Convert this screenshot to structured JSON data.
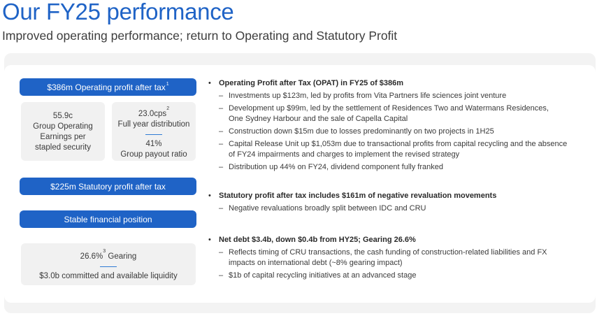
{
  "header": {
    "title": "Our FY25 performance",
    "subtitle": "Improved operating performance; return to Operating and Statutory Profit"
  },
  "left": {
    "pill_opat": {
      "text": "$386m Operating profit after tax",
      "sup": "1"
    },
    "card_eps": {
      "l1": "55.9c",
      "l2": "Group Operating",
      "l3": "Earnings per",
      "l4": "stapled security"
    },
    "card_dist": {
      "value": "23.0cps",
      "sup": "2",
      "label": "Full year distribution",
      "payout_value": "41%",
      "payout_label": "Group payout ratio"
    },
    "pill_statutory": {
      "text": "$225m Statutory profit after tax"
    },
    "pill_financial": {
      "text": "Stable financial position"
    },
    "card_gearing": {
      "value": "26.6%",
      "sup": "3",
      "label": "Gearing",
      "liquidity": "$3.0b committed and available liquidity"
    }
  },
  "bullets": [
    {
      "head": "Operating Profit after Tax (OPAT) in FY25 of $386m",
      "subs": [
        [
          "Investments up $123m, led by profits from Vita Partners life sciences joint venture"
        ],
        [
          "Development up $99m, led by the settlement of Residences Two and Watermans Residences,",
          "One Sydney Harbour and the sale of Capella Capital"
        ],
        [
          "Construction down $15m due to losses predominantly on two projects in 1H25"
        ],
        [
          "Capital Release Unit up $1,053m due to transactional profits from capital recycling and the absence",
          "of FY24 impairments and charges to implement the revised strategy"
        ],
        [
          "Distribution up 44% on FY24, dividend component fully franked"
        ]
      ]
    },
    {
      "head": "Statutory profit after tax includes $161m of negative revaluation movements",
      "subs": [
        [
          "Negative revaluations broadly split between IDC and CRU"
        ]
      ]
    },
    {
      "head": "Net debt $3.4b, down $0.4b from HY25; Gearing 26.6%",
      "subs": [
        [
          "Reflects timing of CRU transactions, the cash funding of construction-related liabilities and FX",
          "impacts on international debt (~8% gearing impact)"
        ],
        [
          "$1b of capital recycling initiatives at an advanced stage"
        ]
      ]
    }
  ],
  "dash": "–",
  "colors": {
    "accent": "#1f63c6",
    "card_bg": "#f1f1f1",
    "panel_bg": "#f3f3f3"
  }
}
